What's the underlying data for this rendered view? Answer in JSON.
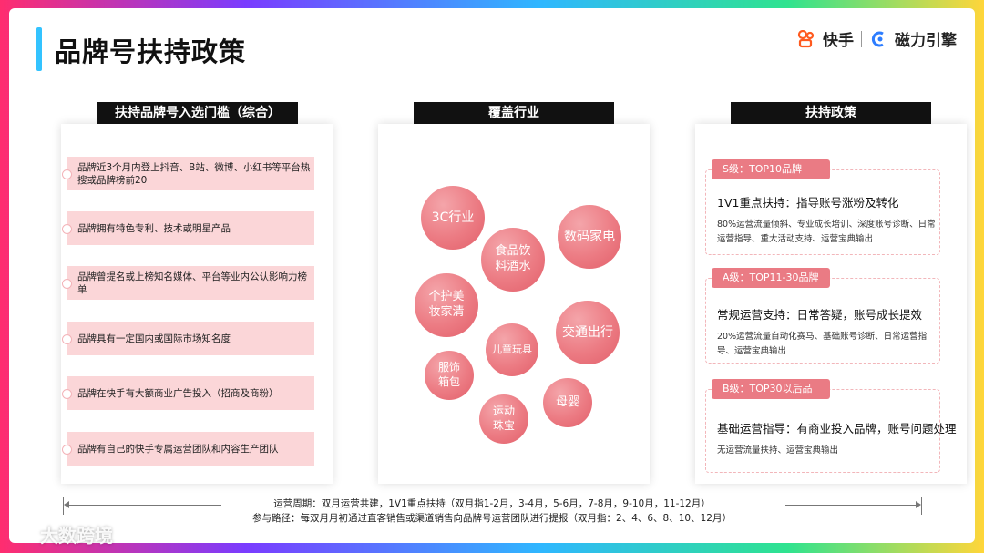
{
  "header": {
    "title": "品牌号扶持政策",
    "logo_kuaishou": "快手",
    "logo_cili": "磁力引擎"
  },
  "columns": {
    "requirements_title": "扶持品牌号入选门槛（综合）",
    "industries_title": "覆盖行业",
    "policy_title": "扶持政策"
  },
  "requirements": [
    "品牌近3个月内登上抖音、B站、微博、小红书等平台热搜或品牌榜前20",
    "品牌拥有特色专利、技术或明星产品",
    "品牌曾提名或上榜知名媒体、平台等业内公认影响力榜单",
    "品牌具有一定国内或国际市场知名度",
    "品牌在快手有大额商业广告投入（招商及商粉）",
    "品牌有自己的快手专属运营团队和内容生产团队"
  ],
  "industries": [
    "3C行业",
    "数码家电",
    "食品饮料酒水",
    "个护美妆家清",
    "交通出行",
    "儿童玩具",
    "服饰箱包",
    "母婴",
    "运动珠宝"
  ],
  "tiers": [
    {
      "tag": "S级：TOP10品牌",
      "title": "1V1重点扶持：指导账号涨粉及转化",
      "desc": "80%运营流量倾斜、专业成长培训、深度账号诊断、日常运营指导、重大活动支持、运营宝典输出"
    },
    {
      "tag": "A级：TOP11-30品牌",
      "title": "常规运营支持：日常答疑，账号成长提效",
      "desc": "20%运营流量自动化赛马、基础账号诊断、日常运营指导、运营宝典输出"
    },
    {
      "tag": "B级：TOP30以后品牌",
      "title": "基础运营指导：有商业投入品牌，账号问题处理",
      "desc": "无运营流量扶持、运营宝典输出"
    }
  ],
  "footer": {
    "cycle": "运营周期：双月运营共建，1V1重点扶持（双月指1-2月，3-4月，5-6月，7-8月，9-10月，11-12月）",
    "path": "参与路径：每双月月初通过直客销售或渠道销售向品牌号运营团队进行提报（双月指：2、4、6、8、10、12月）"
  },
  "watermark": "大数跨境",
  "colors": {
    "accent": "#33c3ff",
    "bubble": "#e8727b",
    "row_bg": "#fbd6d8",
    "tag_bg": "#ea7b84"
  },
  "icons": [
    "kuaishou-logo-icon",
    "cili-logo-icon",
    "watermark-logo-icon"
  ]
}
